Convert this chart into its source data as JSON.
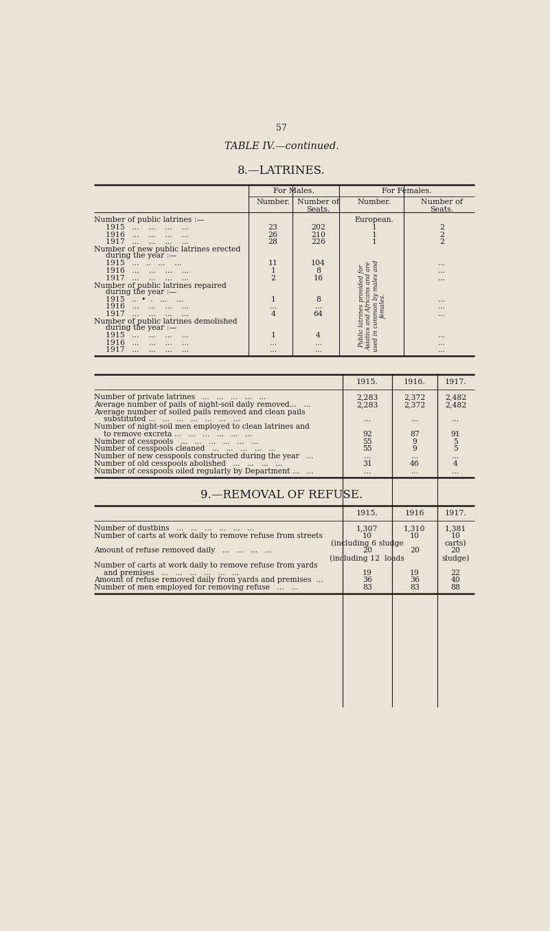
{
  "page_number": "57",
  "title1": "TABLE IV.—continued.",
  "title2": "8.—LATRINES.",
  "title3": "9.—REMOVAL OF REFUSE.",
  "bg_color": "#e8e4d8",
  "text_color": "#1a1a1a",
  "latrines_table1": {
    "rotated_note": "Public latrines provided for\nAsiatics and Africans and are\nused in common by males and\nfemales."
  },
  "section0_label": "Number of public latrines :—",
  "section0_note": "European.",
  "section0_rows": [
    [
      "1915   ...    ...    ...    ...",
      "23",
      "202",
      "1",
      "2"
    ],
    [
      "1916   ...    ...    ...    ...",
      "26",
      "210",
      "1",
      "2"
    ],
    [
      "1917   ...    ...    ...    ...",
      "28",
      "226",
      "1",
      "2"
    ]
  ],
  "section1_label1": "Number of new public latrines erected",
  "section1_label2": "during the year :—",
  "section1_rows": [
    [
      "1915   ...   ..   ...    ...",
      "11",
      "104"
    ],
    [
      "1916   ...    ...    ...    ...",
      "1",
      "8"
    ],
    [
      "1917   ...    ...    ...    ...",
      "2",
      "16"
    ]
  ],
  "section2_label1": "Number of public latrines repaired",
  "section2_label2": "during the year :—",
  "section2_rows": [
    [
      "1915   ..  •  .   ...    ...",
      "1",
      "8"
    ],
    [
      "1916   ...    ...    ...    ...",
      "...",
      "..."
    ],
    [
      "1917   ...    ...    ...    ...",
      "4",
      "64"
    ]
  ],
  "section3_label1": "Number of public latrines demolished",
  "section3_label2": "during the year :—",
  "section3_rows": [
    [
      "1915   ...    ...    ...    ...",
      "1",
      "4"
    ],
    [
      "1916   ...    ...    ...    ...",
      "...",
      "..."
    ],
    [
      "1917   ...    ...    ...    ...",
      "...",
      "..."
    ]
  ],
  "t2_rows": [
    [
      "Number of private latrines   ...   ...   ...   ...   ...",
      "2,283",
      "2,372",
      "2,482"
    ],
    [
      "Average number of pails of night-soil daily removed...   ...",
      "2,283",
      "2,372",
      "2,482"
    ],
    [
      "Average number of soiled pails removed and clean pails",
      "",
      "",
      ""
    ],
    [
      "    substituted ...   ...   ...   ...   ...   ...   ...",
      "...",
      "...",
      "..."
    ],
    [
      "Number of night-soil men employed to clean latrines and",
      "",
      "",
      ""
    ],
    [
      "    to remove excreta ...   ...   ...   ...   ...   ...",
      "92",
      "87",
      "91"
    ],
    [
      "Number of cesspools   ...   ...   ...   ...   ...   ...",
      "55",
      "9",
      "5"
    ],
    [
      "Number of cesspools cleaned   ...   ...   ...   ...   ...",
      "55",
      "9",
      "5"
    ],
    [
      "Number of new cesspools constructed during the year   ...",
      "...",
      "...",
      "..."
    ],
    [
      "Number of old cesspools abolished   ...   ...   ...   ...",
      "31",
      "46",
      "4"
    ],
    [
      "Number of cesspools oiled regularly by Department ...   ...",
      "...",
      "...",
      "..."
    ]
  ],
  "t3_rows": [
    [
      "Number of dustbins   ...   ...   ...   ...   ...   ...",
      "1,307",
      "1,310",
      "1,381"
    ],
    [
      "Number of carts at work daily to remove refuse from streets",
      "10",
      "10",
      "10"
    ],
    [
      "",
      "(including 6 sludge",
      "",
      "carts)"
    ],
    [
      "Amount of refuse removed daily   ...   ...   ...   ...",
      "20",
      "20",
      "20"
    ],
    [
      "",
      "(including 12  loads",
      "",
      "sludge)"
    ],
    [
      "Number of carts at work daily to remove refuse from yards",
      "",
      "",
      ""
    ],
    [
      "    and premises   ...   ...   ...   ...   ...   ...",
      "19",
      "19",
      "22"
    ],
    [
      "Amount of refuse removed daily from yards and premises  ...",
      "36",
      "36",
      "40"
    ],
    [
      "Number of men employed for removing refuse   ...   ...",
      "83",
      "83",
      "88"
    ]
  ]
}
